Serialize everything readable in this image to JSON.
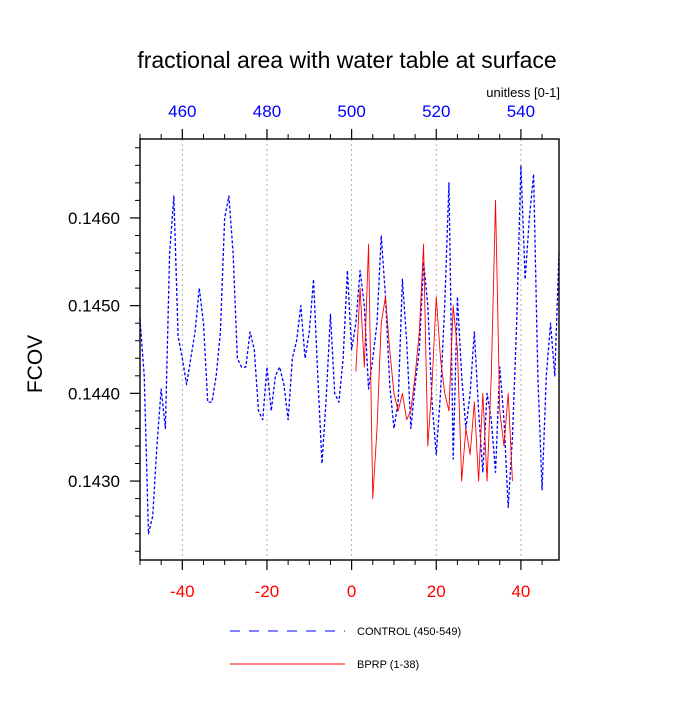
{
  "chart_data": {
    "type": "line",
    "title": "fractional area with water table at surface",
    "units_label": "unitless [0-1]",
    "ylabel": "FCOV",
    "ylim": [
      0.1421,
      0.1469
    ],
    "yticks": [
      "0.1430",
      "0.1440",
      "0.1450",
      "0.1460"
    ],
    "x_bottom": {
      "range": [
        -50,
        49
      ],
      "ticks": [
        "-40",
        "-20",
        "0",
        "20",
        "40"
      ],
      "color": "#ff0000"
    },
    "x_top": {
      "range": [
        450,
        549
      ],
      "ticks": [
        "460",
        "480",
        "500",
        "520",
        "540"
      ],
      "color": "#0000ff"
    },
    "grid": "vertical dotted at bottom major ticks",
    "legend_position": "bottom-center",
    "series": [
      {
        "name": "CONTROL (450-549)",
        "color": "#0000ff",
        "style": "dashed",
        "x_start": -50,
        "values": [
          0.14485,
          0.1442,
          0.1424,
          0.1426,
          0.1434,
          0.14405,
          0.1436,
          0.1456,
          0.14625,
          0.14465,
          0.1444,
          0.1441,
          0.1444,
          0.1447,
          0.1452,
          0.1448,
          0.1439,
          0.1439,
          0.1442,
          0.1447,
          0.146,
          0.14625,
          0.1456,
          0.1444,
          0.1443,
          0.1443,
          0.1447,
          0.1445,
          0.1438,
          0.1437,
          0.1443,
          0.1438,
          0.1442,
          0.1443,
          0.1441,
          0.1437,
          0.1444,
          0.1446,
          0.145,
          0.1444,
          0.1447,
          0.1453,
          0.1442,
          0.1432,
          0.14395,
          0.1449,
          0.144,
          0.1439,
          0.1444,
          0.1454,
          0.1445,
          0.1448,
          0.1454,
          0.145,
          0.14405,
          0.1444,
          0.1448,
          0.1458,
          0.1451,
          0.1441,
          0.1436,
          0.1439,
          0.1453,
          0.1446,
          0.1436,
          0.1441,
          0.1445,
          0.1455,
          0.145,
          0.1439,
          0.1433,
          0.144,
          0.145,
          0.1464,
          0.14325,
          0.1451,
          0.1442,
          0.1436,
          0.144,
          0.1447,
          0.1438,
          0.1431,
          0.144,
          0.1437,
          0.1431,
          0.1443,
          0.1437,
          0.1427,
          0.1435,
          0.1448,
          0.1466,
          0.1453,
          0.146,
          0.1465,
          0.1442,
          0.1429,
          0.1442,
          0.1448,
          0.1442,
          0.1456
        ],
        "visible_in_legend": true
      },
      {
        "name": "BPRP (1-38)",
        "color": "#ff0000",
        "style": "solid",
        "x_start": 1,
        "values": [
          0.14425,
          0.1452,
          0.1443,
          0.1457,
          0.1428,
          0.1436,
          0.1448,
          0.1451,
          0.1445,
          0.144,
          0.1438,
          0.144,
          0.1437,
          0.1438,
          0.1442,
          0.1447,
          0.1457,
          0.1434,
          0.1441,
          0.1451,
          0.1444,
          0.144,
          0.1438,
          0.145,
          0.1445,
          0.143,
          0.1436,
          0.1433,
          0.1439,
          0.143,
          0.144,
          0.143,
          0.1442,
          0.1462,
          0.1438,
          0.1434,
          0.144,
          0.143
        ]
      }
    ]
  }
}
